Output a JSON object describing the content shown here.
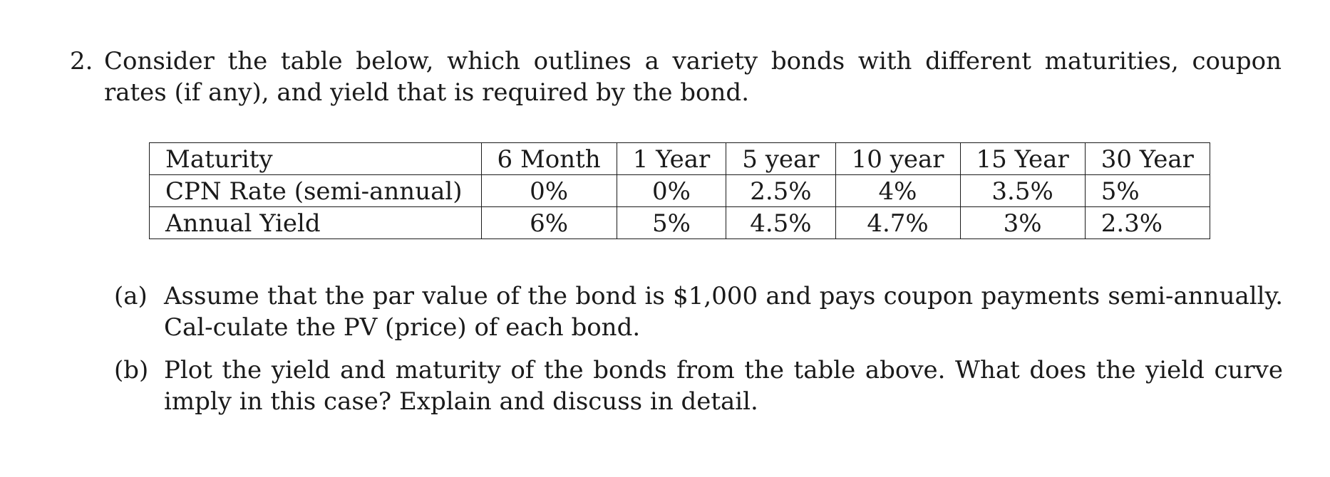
{
  "problem": {
    "number": "2.",
    "text": "Consider the table below, which outlines a variety bonds with different maturities, coupon rates (if any), and yield that is required by the bond."
  },
  "table": {
    "rows": [
      {
        "label": "Maturity",
        "cells": [
          "6 Month",
          "1 Year",
          "5 year",
          "10 year",
          "15 Year",
          "30 Year"
        ]
      },
      {
        "label": "CPN Rate (semi-annual)",
        "cells": [
          "0%",
          "0%",
          "2.5%",
          "4%",
          "3.5%",
          "5%"
        ]
      },
      {
        "label": "Annual Yield",
        "cells": [
          "6%",
          "5%",
          "4.5%",
          "4.7%",
          "3%",
          "2.3%"
        ]
      }
    ]
  },
  "parts": [
    {
      "label": "(a)",
      "text": "Assume that the par value of the bond is $1,000 and pays coupon payments semi-annually. Cal-culate the PV (price) of each bond."
    },
    {
      "label": "(b)",
      "text": "Plot the yield and maturity of the bonds from the table above. What does the yield curve imply in this case? Explain and discuss in detail."
    }
  ]
}
